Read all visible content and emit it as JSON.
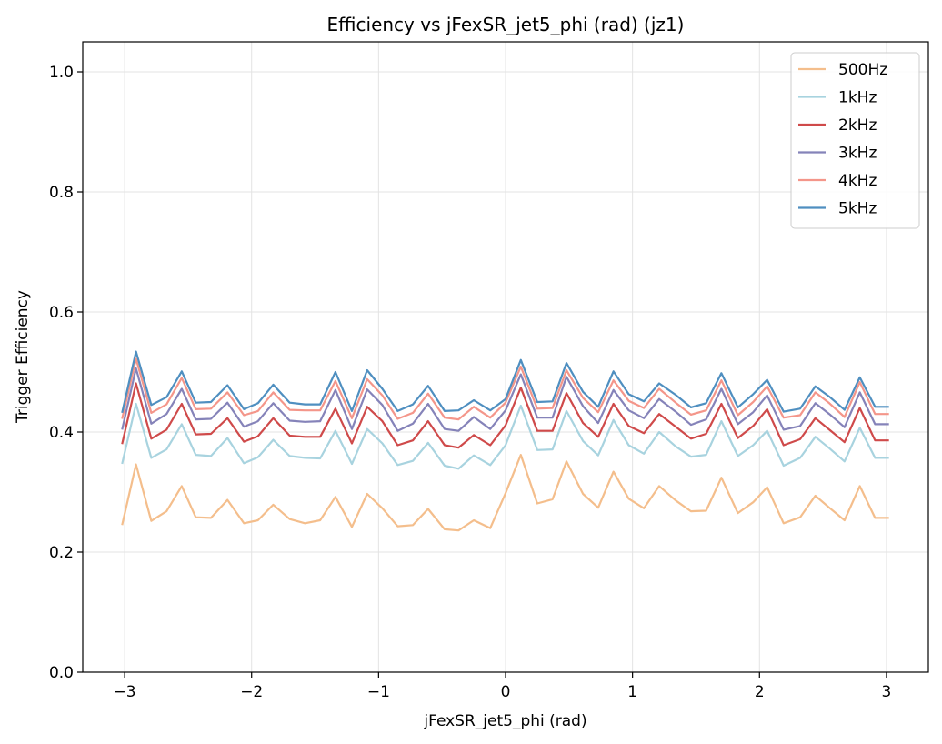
{
  "chart_data": {
    "type": "line",
    "title": "Efficiency vs jFexSR_jet5_phi (rad) (jz1)",
    "xlabel": "jFexSR_jet5_phi (rad)",
    "ylabel": "Trigger Efficiency",
    "xlim": [
      -3.33,
      3.33
    ],
    "ylim": [
      0.0,
      1.05
    ],
    "xticks": [
      -3,
      -2,
      -1,
      0,
      1,
      2,
      3
    ],
    "xtick_labels": [
      "−3",
      "−2",
      "−1",
      "0",
      "1",
      "2",
      "3"
    ],
    "yticks": [
      0.0,
      0.2,
      0.4,
      0.6,
      0.8,
      1.0
    ],
    "ytick_labels": [
      "0.0",
      "0.2",
      "0.4",
      "0.6",
      "0.8",
      "1.0"
    ],
    "grid": true,
    "legend_position": "top-right",
    "x": [
      -3.02,
      -2.91,
      -2.79,
      -2.67,
      -2.55,
      -2.44,
      -2.32,
      -2.19,
      -2.06,
      -1.95,
      -1.83,
      -1.7,
      -1.58,
      -1.46,
      -1.34,
      -1.21,
      -1.09,
      -0.97,
      -0.85,
      -0.73,
      -0.61,
      -0.48,
      -0.37,
      -0.25,
      -0.12,
      0.0,
      0.12,
      0.25,
      0.37,
      0.48,
      0.61,
      0.73,
      0.85,
      0.97,
      1.09,
      1.21,
      1.34,
      1.46,
      1.58,
      1.7,
      1.83,
      1.95,
      2.06,
      2.19,
      2.32,
      2.44,
      2.55,
      2.67,
      2.79,
      2.91,
      3.02
    ],
    "series": [
      {
        "name": "500Hz",
        "color": "#f4be8c",
        "values": [
          0.245,
          0.346,
          0.252,
          0.268,
          0.31,
          0.258,
          0.257,
          0.287,
          0.248,
          0.253,
          0.279,
          0.255,
          0.248,
          0.253,
          0.292,
          0.242,
          0.297,
          0.273,
          0.243,
          0.245,
          0.272,
          0.238,
          0.236,
          0.253,
          0.24,
          0.298,
          0.362,
          0.281,
          0.288,
          0.351,
          0.297,
          0.274,
          0.334,
          0.289,
          0.273,
          0.31,
          0.286,
          0.268,
          0.269,
          0.324,
          0.265,
          0.283,
          0.308,
          0.248,
          0.258,
          0.294,
          0.274,
          0.253,
          0.31,
          0.257,
          0.257
        ]
      },
      {
        "name": "1kHz",
        "color": "#a8d3df",
        "values": [
          0.347,
          0.447,
          0.357,
          0.371,
          0.413,
          0.362,
          0.36,
          0.39,
          0.348,
          0.358,
          0.387,
          0.36,
          0.357,
          0.356,
          0.402,
          0.347,
          0.405,
          0.381,
          0.345,
          0.352,
          0.382,
          0.344,
          0.339,
          0.361,
          0.345,
          0.378,
          0.444,
          0.37,
          0.371,
          0.435,
          0.385,
          0.361,
          0.42,
          0.378,
          0.364,
          0.4,
          0.376,
          0.359,
          0.362,
          0.418,
          0.36,
          0.378,
          0.402,
          0.344,
          0.357,
          0.392,
          0.373,
          0.351,
          0.407,
          0.357,
          0.357
        ]
      },
      {
        "name": "2kHz",
        "color": "#cf4a4a",
        "values": [
          0.38,
          0.481,
          0.389,
          0.404,
          0.447,
          0.396,
          0.397,
          0.423,
          0.384,
          0.393,
          0.423,
          0.394,
          0.392,
          0.392,
          0.439,
          0.381,
          0.442,
          0.418,
          0.378,
          0.386,
          0.418,
          0.378,
          0.374,
          0.395,
          0.378,
          0.411,
          0.474,
          0.402,
          0.402,
          0.465,
          0.415,
          0.392,
          0.447,
          0.41,
          0.398,
          0.43,
          0.409,
          0.389,
          0.397,
          0.447,
          0.39,
          0.41,
          0.438,
          0.378,
          0.388,
          0.423,
          0.404,
          0.383,
          0.44,
          0.386,
          0.386
        ]
      },
      {
        "name": "3kHz",
        "color": "#8583b9",
        "values": [
          0.404,
          0.506,
          0.414,
          0.43,
          0.472,
          0.421,
          0.422,
          0.449,
          0.409,
          0.418,
          0.448,
          0.419,
          0.417,
          0.418,
          0.47,
          0.405,
          0.471,
          0.445,
          0.402,
          0.414,
          0.447,
          0.405,
          0.402,
          0.425,
          0.405,
          0.436,
          0.496,
          0.424,
          0.424,
          0.492,
          0.443,
          0.415,
          0.47,
          0.436,
          0.423,
          0.455,
          0.434,
          0.412,
          0.421,
          0.472,
          0.413,
          0.433,
          0.461,
          0.404,
          0.41,
          0.448,
          0.43,
          0.408,
          0.466,
          0.413,
          0.413
        ]
      },
      {
        "name": "4kHz",
        "color": "#f4968a",
        "values": [
          0.422,
          0.522,
          0.432,
          0.446,
          0.49,
          0.438,
          0.439,
          0.466,
          0.428,
          0.435,
          0.466,
          0.437,
          0.436,
          0.436,
          0.485,
          0.423,
          0.488,
          0.461,
          0.422,
          0.432,
          0.464,
          0.424,
          0.421,
          0.442,
          0.424,
          0.449,
          0.509,
          0.439,
          0.44,
          0.503,
          0.457,
          0.433,
          0.486,
          0.452,
          0.44,
          0.472,
          0.449,
          0.429,
          0.436,
          0.486,
          0.428,
          0.45,
          0.476,
          0.424,
          0.428,
          0.466,
          0.448,
          0.425,
          0.483,
          0.43,
          0.43
        ]
      },
      {
        "name": "5kHz",
        "color": "#4f8fc0",
        "values": [
          0.432,
          0.534,
          0.445,
          0.458,
          0.501,
          0.449,
          0.45,
          0.478,
          0.438,
          0.448,
          0.479,
          0.449,
          0.446,
          0.446,
          0.5,
          0.435,
          0.503,
          0.472,
          0.435,
          0.446,
          0.477,
          0.435,
          0.436,
          0.453,
          0.436,
          0.455,
          0.52,
          0.45,
          0.451,
          0.515,
          0.467,
          0.442,
          0.501,
          0.463,
          0.451,
          0.481,
          0.462,
          0.441,
          0.448,
          0.498,
          0.441,
          0.463,
          0.487,
          0.434,
          0.439,
          0.476,
          0.459,
          0.437,
          0.491,
          0.442,
          0.442
        ]
      }
    ]
  }
}
